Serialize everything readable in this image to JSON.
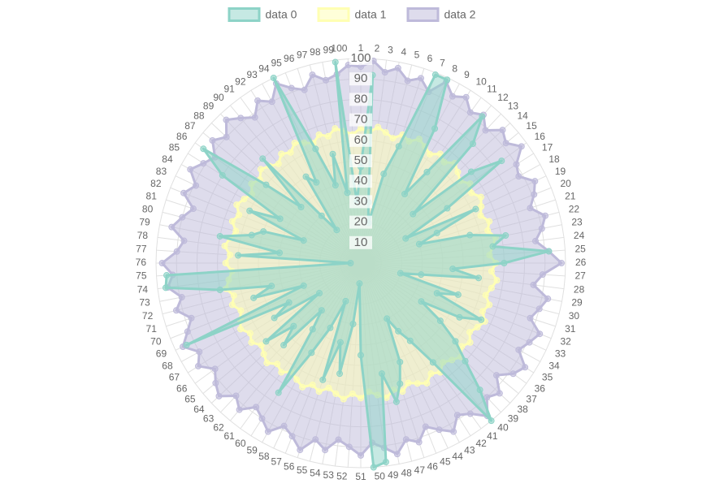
{
  "chart_data": {
    "type": "radar",
    "categories": [
      "1",
      "2",
      "3",
      "4",
      "5",
      "6",
      "7",
      "8",
      "9",
      "10",
      "11",
      "12",
      "13",
      "14",
      "15",
      "16",
      "17",
      "18",
      "19",
      "20",
      "21",
      "22",
      "23",
      "24",
      "25",
      "26",
      "27",
      "28",
      "29",
      "30",
      "31",
      "32",
      "33",
      "34",
      "35",
      "36",
      "37",
      "38",
      "39",
      "40",
      "41",
      "42",
      "43",
      "44",
      "45",
      "46",
      "47",
      "48",
      "49",
      "50",
      "51",
      "52",
      "53",
      "54",
      "55",
      "56",
      "57",
      "58",
      "59",
      "60",
      "61",
      "62",
      "63",
      "64",
      "65",
      "66",
      "67",
      "68",
      "69",
      "70",
      "71",
      "72",
      "73",
      "74",
      "75",
      "76",
      "77",
      "78",
      "79",
      "80",
      "81",
      "82",
      "83",
      "84",
      "85",
      "86",
      "87",
      "88",
      "89",
      "90",
      "91",
      "92",
      "93",
      "94",
      "95",
      "96",
      "97",
      "98",
      "99",
      "100"
    ],
    "series": [
      {
        "name": "data 0",
        "color": "#8dd3c7",
        "values": [
          47,
          92,
          30,
          20,
          45,
          60,
          99,
          99,
          75,
          40,
          55,
          93,
          80,
          35,
          70,
          85,
          50,
          25,
          62,
          40,
          30,
          55,
          72,
          65,
          92,
          70,
          45,
          58,
          30,
          20,
          50,
          40,
          65,
          55,
          35,
          48,
          60,
          70,
          85,
          100,
          60,
          45,
          38,
          30,
          52,
          62,
          70,
          55,
          98,
          100,
          45,
          10,
          30,
          55,
          40,
          60,
          20,
          35,
          50,
          75,
          40,
          30,
          55,
          45,
          60,
          25,
          50,
          40,
          94,
          30,
          55,
          45,
          70,
          96,
          95,
          5,
          60,
          40,
          70,
          55,
          50,
          30,
          60,
          45,
          80,
          95,
          60,
          40,
          70,
          30,
          20,
          50,
          45,
          100,
          60,
          40,
          55,
          35,
          99,
          30
        ]
      },
      {
        "name": "data 1",
        "color": "#ffffb3",
        "values": [
          66,
          64,
          67,
          65,
          63,
          66,
          64,
          67,
          65,
          63,
          66,
          64,
          67,
          65,
          63,
          66,
          64,
          67,
          65,
          63,
          66,
          64,
          67,
          65,
          63,
          66,
          64,
          67,
          65,
          63,
          66,
          64,
          67,
          65,
          63,
          66,
          64,
          67,
          65,
          63,
          66,
          64,
          67,
          65,
          63,
          66,
          64,
          67,
          65,
          63,
          66,
          64,
          67,
          65,
          63,
          66,
          64,
          67,
          65,
          63,
          66,
          64,
          67,
          65,
          63,
          66,
          64,
          67,
          65,
          63,
          66,
          64,
          67,
          65,
          63,
          66,
          64,
          67,
          65,
          63,
          66,
          64,
          67,
          65,
          63,
          66,
          64,
          67,
          65,
          63,
          66,
          64,
          67,
          65,
          63,
          66,
          64,
          67,
          65,
          63
        ]
      },
      {
        "name": "data 2",
        "color": "#bebada",
        "values": [
          96,
          99,
          94,
          97,
          92,
          95,
          90,
          98,
          93,
          96,
          91,
          94,
          89,
          95,
          92,
          97,
          90,
          88,
          94,
          91,
          87,
          93,
          90,
          86,
          92,
          98,
          89,
          85,
          93,
          90,
          87,
          94,
          91,
          88,
          95,
          92,
          86,
          93,
          90,
          97,
          91,
          88,
          94,
          90,
          86,
          92,
          89,
          95,
          91,
          88,
          94,
          90,
          87,
          93,
          89,
          96,
          91,
          88,
          94,
          90,
          87,
          93,
          89,
          95,
          92,
          88,
          94,
          90,
          96,
          91,
          87,
          93,
          89,
          95,
          92,
          97,
          90,
          87,
          94,
          90,
          86,
          93,
          89,
          95,
          91,
          88,
          94,
          90,
          96,
          92,
          88,
          94,
          90,
          97,
          92,
          89,
          95,
          91,
          93,
          97
        ]
      }
    ],
    "rlim": [
      0,
      100
    ],
    "rticks": [
      10,
      20,
      30,
      40,
      50,
      60,
      70,
      80,
      90,
      100
    ],
    "grid": true
  }
}
